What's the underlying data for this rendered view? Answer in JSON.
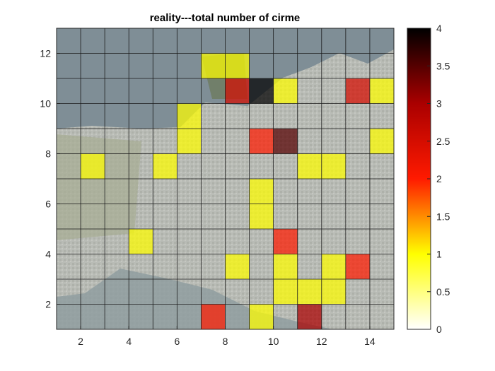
{
  "chart_data": {
    "type": "heatmap",
    "title": "reality---total number of cirme",
    "xlabel": "",
    "ylabel": "",
    "xlim": [
      1,
      15
    ],
    "ylim": [
      1,
      13
    ],
    "xticks": [
      2,
      4,
      6,
      8,
      10,
      12,
      14
    ],
    "yticks": [
      2,
      4,
      6,
      8,
      10,
      12
    ],
    "grid": true,
    "background": "satellite map of a city with water (Vancouver area), grey-blue water in upper-left",
    "colormap": "hot (reversed): 0 white, 1 yellow, 2 red, 4 black",
    "colorbar": {
      "min": 0,
      "max": 4,
      "ticks": [
        "0",
        "0.5",
        "1",
        "1.5",
        "2",
        "2.5",
        "3",
        "3.5",
        "4"
      ]
    },
    "cells_nonzero": [
      {
        "col": 7,
        "row": 11,
        "value": 1
      },
      {
        "col": 8,
        "row": 11,
        "value": 1
      },
      {
        "col": 8,
        "row": 10,
        "value": 2.5
      },
      {
        "col": 9,
        "row": 10,
        "value": 4
      },
      {
        "col": 10,
        "row": 10,
        "value": 1
      },
      {
        "col": 13,
        "row": 10,
        "value": 2.5
      },
      {
        "col": 14,
        "row": 10,
        "value": 1
      },
      {
        "col": 6,
        "row": 9,
        "value": 1
      },
      {
        "col": 6,
        "row": 8,
        "value": 1
      },
      {
        "col": 9,
        "row": 8,
        "value": 2
      },
      {
        "col": 10,
        "row": 8,
        "value": 3.5
      },
      {
        "col": 14,
        "row": 8,
        "value": 1
      },
      {
        "col": 2,
        "row": 7,
        "value": 1
      },
      {
        "col": 5,
        "row": 7,
        "value": 1
      },
      {
        "col": 11,
        "row": 7,
        "value": 1
      },
      {
        "col": 12,
        "row": 7,
        "value": 1
      },
      {
        "col": 9,
        "row": 6,
        "value": 1
      },
      {
        "col": 9,
        "row": 5,
        "value": 1
      },
      {
        "col": 10,
        "row": 4,
        "value": 2
      },
      {
        "col": 4,
        "row": 4,
        "value": 1
      },
      {
        "col": 8,
        "row": 3,
        "value": 1
      },
      {
        "col": 10,
        "row": 3,
        "value": 1
      },
      {
        "col": 12,
        "row": 3,
        "value": 1
      },
      {
        "col": 13,
        "row": 3,
        "value": 2
      },
      {
        "col": 10,
        "row": 2,
        "value": 1
      },
      {
        "col": 11,
        "row": 2,
        "value": 1
      },
      {
        "col": 12,
        "row": 2,
        "value": 1
      },
      {
        "col": 7,
        "row": 1,
        "value": 2
      },
      {
        "col": 9,
        "row": 1,
        "value": 1
      },
      {
        "col": 11,
        "row": 1,
        "value": 3
      }
    ]
  }
}
